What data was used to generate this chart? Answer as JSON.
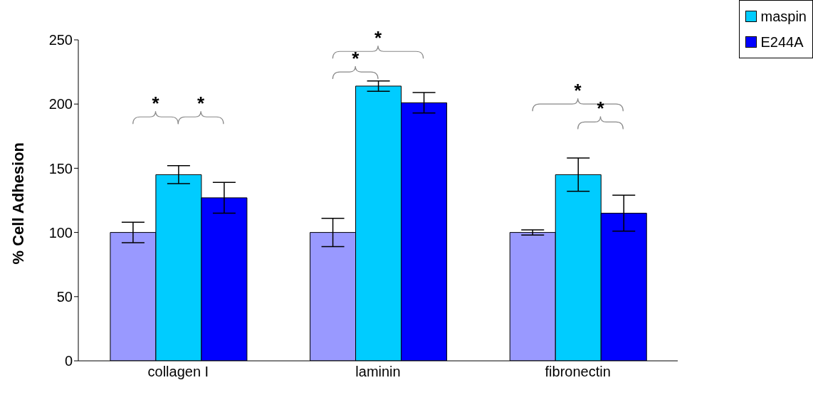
{
  "chart_data": {
    "type": "bar",
    "ylabel": "% Cell Adhesion",
    "categories": [
      "collagen I",
      "laminin",
      "fibronectin"
    ],
    "series": [
      {
        "color": "#9999ff",
        "values": [
          100,
          100,
          100
        ],
        "errors": [
          8,
          11,
          2
        ]
      },
      {
        "name": "maspin",
        "color": "#00ccff",
        "values": [
          145,
          214,
          145
        ],
        "errors": [
          7,
          4,
          13
        ]
      },
      {
        "name": "E244A",
        "color": "#0000ff",
        "values": [
          127,
          201,
          115
        ],
        "errors": [
          12,
          8,
          14
        ]
      }
    ],
    "ylim": [
      0,
      250
    ],
    "yticks": [
      0,
      50,
      100,
      150,
      200,
      250
    ],
    "legend": "top right",
    "annotations": [
      "*",
      "*",
      "*",
      "*",
      "*",
      "*"
    ]
  }
}
